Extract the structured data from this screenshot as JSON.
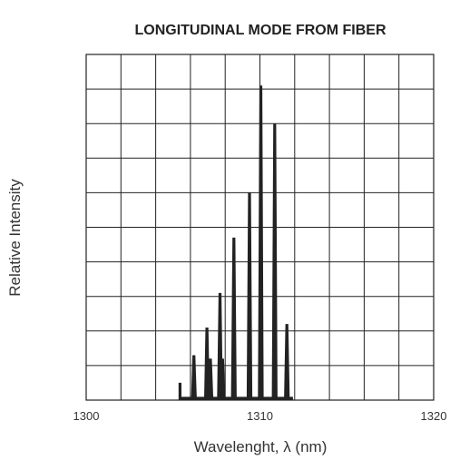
{
  "chart_data": {
    "type": "line",
    "title": "LONGITUDINAL MODE FROM FIBER",
    "xlabel": "Wavelenght, λ (nm)",
    "ylabel": "Relative Intensity",
    "xlim": [
      1300,
      1320
    ],
    "ylim": [
      0,
      10
    ],
    "x_ticks": [
      1300,
      1310,
      1320
    ],
    "x_tick_labels": [
      "1300",
      "1310",
      "1320"
    ],
    "grid": true,
    "series": [
      {
        "color": "#222222",
        "peaks": [
          {
            "x": 1305.4,
            "y": 0.5
          },
          {
            "x": 1306.2,
            "y": 1.3
          },
          {
            "x": 1306.95,
            "y": 2.1
          },
          {
            "x": 1307.15,
            "y": 1.2
          },
          {
            "x": 1307.7,
            "y": 3.1
          },
          {
            "x": 1307.85,
            "y": 1.2
          },
          {
            "x": 1308.5,
            "y": 4.7
          },
          {
            "x": 1309.4,
            "y": 6.0
          },
          {
            "x": 1310.05,
            "y": 9.1
          },
          {
            "x": 1310.85,
            "y": 8.0
          },
          {
            "x": 1311.55,
            "y": 2.2
          }
        ]
      }
    ]
  }
}
